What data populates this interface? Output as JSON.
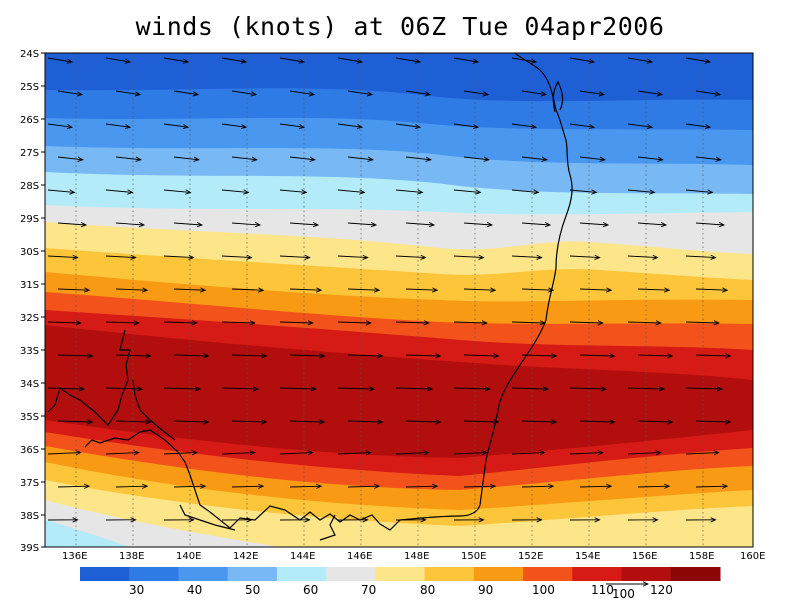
{
  "title": "winds (knots) at 06Z Tue 04apr2006",
  "latitudes": [
    "24S",
    "25S",
    "26S",
    "27S",
    "28S",
    "29S",
    "30S",
    "31S",
    "32S",
    "33S",
    "34S",
    "35S",
    "36S",
    "37S",
    "38S",
    "39S"
  ],
  "longitudes": [
    "136E",
    "138E",
    "140E",
    "142E",
    "144E",
    "146E",
    "148E",
    "150E",
    "152E",
    "154E",
    "156E",
    "158E",
    "160E"
  ],
  "colorbar": {
    "colors": [
      "#1f5fd6",
      "#2f7be6",
      "#4a97ef",
      "#78b8f5",
      "#b3ecf8",
      "#e6e6e6",
      "#fde58a",
      "#fcc53a",
      "#f99a14",
      "#f3531b",
      "#d61a15",
      "#b20e0e",
      "#8c0606"
    ],
    "labels": [
      "30",
      "40",
      "50",
      "60",
      "70",
      "80",
      "90",
      "100",
      "110",
      "120"
    ]
  },
  "vector_key": {
    "label": "100"
  },
  "map_data": {
    "lon_range": [
      135,
      160
    ],
    "lat_range": [
      -39,
      -24
    ],
    "field": "wind speed (knots) with wind vectors",
    "coastline": "South-eastern Australia (Victoria, New South Wales, South Australia)"
  }
}
